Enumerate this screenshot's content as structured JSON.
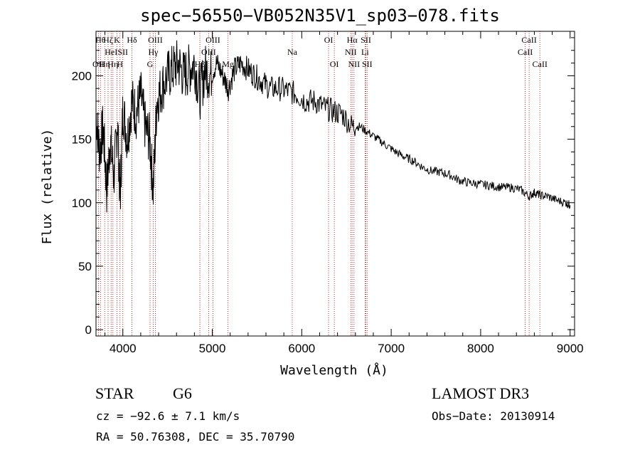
{
  "chart_data": {
    "type": "line",
    "title": "spec−56550−VB052N35V1_sp03−078.fits",
    "xlabel": "Wavelength (Å)",
    "ylabel": "Flux (relative)",
    "xlim": [
      3700,
      9050
    ],
    "ylim": [
      -5,
      235
    ],
    "xticks": [
      4000,
      5000,
      6000,
      7000,
      8000,
      9000
    ],
    "yticks": [
      0,
      50,
      100,
      150,
      200
    ],
    "grid": false,
    "series": [
      {
        "name": "spectrum",
        "x": [
          3700,
          3740,
          3780,
          3820,
          3860,
          3900,
          3940,
          3970,
          4000,
          4050,
          4100,
          4150,
          4200,
          4250,
          4300,
          4340,
          4380,
          4430,
          4500,
          4560,
          4620,
          4680,
          4740,
          4800,
          4861,
          4920,
          4980,
          5050,
          5120,
          5180,
          5250,
          5320,
          5400,
          5480,
          5560,
          5650,
          5750,
          5850,
          5950,
          6050,
          6150,
          6250,
          6350,
          6450,
          6563,
          6650,
          6750,
          6850,
          6950,
          7050,
          7150,
          7250,
          7350,
          7450,
          7550,
          7650,
          7750,
          7850,
          7950,
          8050,
          8150,
          8250,
          8350,
          8450,
          8542,
          8600,
          8662,
          8750,
          8850,
          8950,
          9000
        ],
        "y": [
          170,
          140,
          160,
          110,
          150,
          120,
          165,
          100,
          175,
          150,
          180,
          170,
          185,
          160,
          150,
          110,
          180,
          190,
          200,
          205,
          210,
          200,
          205,
          210,
          185,
          205,
          200,
          210,
          200,
          190,
          205,
          210,
          205,
          200,
          195,
          190,
          190,
          188,
          185,
          180,
          180,
          175,
          172,
          170,
          160,
          160,
          155,
          150,
          145,
          140,
          136,
          133,
          128,
          125,
          124,
          122,
          118,
          116,
          115,
          114,
          113,
          112,
          112,
          110,
          105,
          108,
          106,
          105,
          102,
          100,
          98
        ]
      }
    ],
    "lines": [
      {
        "wl": 3727,
        "label": "OII",
        "row": 2
      },
      {
        "wl": 3750,
        "label": "Hθ",
        "row": 0
      },
      {
        "wl": 3798,
        "label": "Hη",
        "row": 2
      },
      {
        "wl": 3835,
        "label": "Hζ",
        "row": 0
      },
      {
        "wl": 3869,
        "label": "HeI",
        "row": 1
      },
      {
        "wl": 3889,
        "label": "Hη",
        "row": 2
      },
      {
        "wl": 3934,
        "label": "K",
        "row": 0
      },
      {
        "wl": 3968,
        "label": "H",
        "row": 2
      },
      {
        "wl": 4000,
        "label": "SII",
        "row": 1
      },
      {
        "wl": 4102,
        "label": "Hδ",
        "row": 0
      },
      {
        "wl": 4304,
        "label": "G",
        "row": 2
      },
      {
        "wl": 4340,
        "label": "Hγ",
        "row": 1
      },
      {
        "wl": 4363,
        "label": "OIII",
        "row": 0
      },
      {
        "wl": 4861,
        "label": "Hβ",
        "row": 2
      },
      {
        "wl": 4959,
        "label": "OIII",
        "row": 1
      },
      {
        "wl": 5007,
        "label": "OIII",
        "row": 0
      },
      {
        "wl": 5175,
        "label": "Mg",
        "row": 2
      },
      {
        "wl": 5894,
        "label": "Na",
        "row": 1
      },
      {
        "wl": 6300,
        "label": "OI",
        "row": 0
      },
      {
        "wl": 6364,
        "label": "OI",
        "row": 2
      },
      {
        "wl": 6548,
        "label": "NII",
        "row": 1
      },
      {
        "wl": 6563,
        "label": "Hα",
        "row": 0
      },
      {
        "wl": 6584,
        "label": "NII",
        "row": 2
      },
      {
        "wl": 6708,
        "label": "Li",
        "row": 1
      },
      {
        "wl": 6717,
        "label": "SII",
        "row": 0
      },
      {
        "wl": 6731,
        "label": "SII",
        "row": 2
      },
      {
        "wl": 8498,
        "label": "CaII",
        "row": 1
      },
      {
        "wl": 8542,
        "label": "CaII",
        "row": 0
      },
      {
        "wl": 8662,
        "label": "CaII",
        "row": 2
      }
    ]
  },
  "info": {
    "class_label": "STAR",
    "subclass": "G6",
    "survey": "LAMOST DR3",
    "cz": "cz = −92.6 ± 7.1 km/s",
    "obs_date": "Obs−Date: 20130914",
    "coords": "RA =  50.76308, DEC =  35.70790"
  }
}
